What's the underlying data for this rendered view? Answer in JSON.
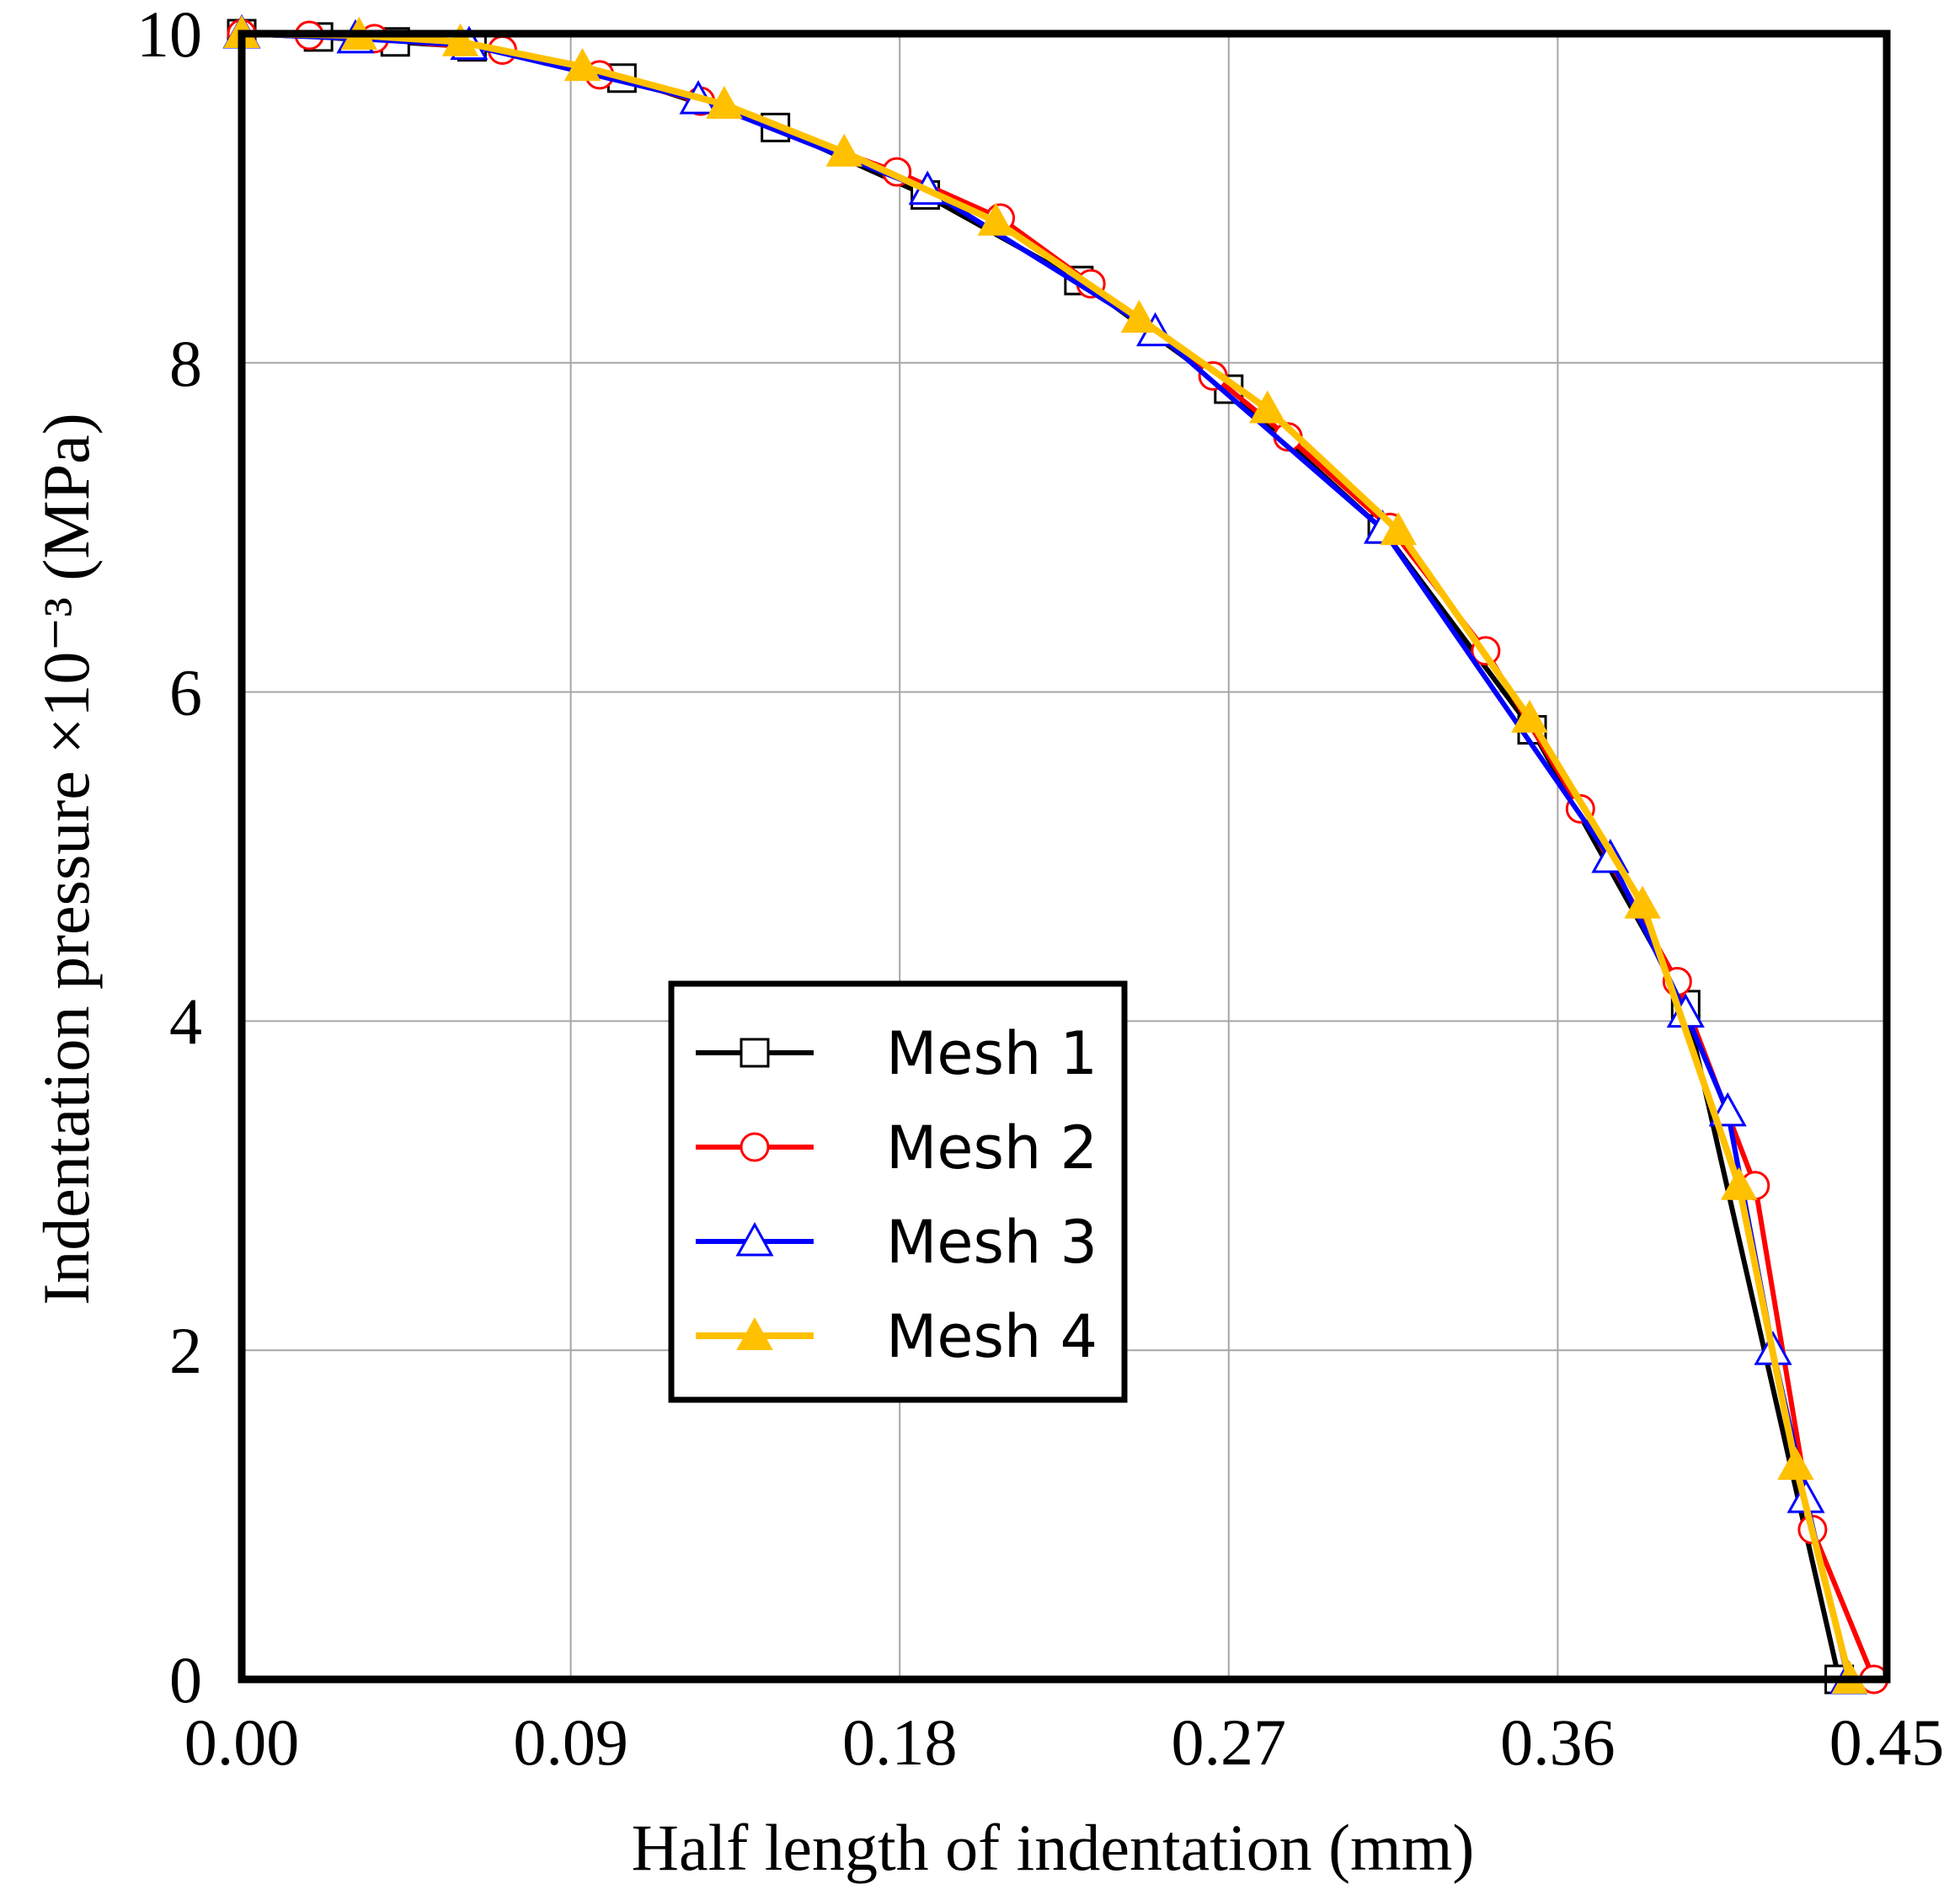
{
  "chart_data": {
    "type": "line",
    "xlabel": "Half length of indentation (mm)",
    "ylabel": "Indentation pressure ×10⁻³ (MPa)",
    "xlim": [
      0,
      0.45
    ],
    "ylim": [
      0,
      10
    ],
    "xticks": [
      "0.00",
      "0.09",
      "0.18",
      "0.27",
      "0.36",
      "0.45"
    ],
    "yticks": [
      "0",
      "2",
      "4",
      "6",
      "8",
      "10"
    ],
    "grid": true,
    "legend_position": "center-left",
    "series": [
      {
        "name": "Mesh 1",
        "color": "#000000",
        "marker": "square-open",
        "x": [
          0,
          0.021,
          0.042,
          0.063,
          0.104,
          0.146,
          0.187,
          0.229,
          0.27,
          0.312,
          0.353,
          0.395,
          0.437
        ],
        "y": [
          10,
          9.98,
          9.95,
          9.92,
          9.73,
          9.43,
          9.02,
          8.5,
          7.84,
          6.99,
          5.77,
          4.1,
          0.0
        ]
      },
      {
        "name": "Mesh 2",
        "color": "#ff0000",
        "marker": "circle-open",
        "x": [
          0,
          0.0185,
          0.0363,
          0.0713,
          0.0979,
          0.1255,
          0.1792,
          0.2075,
          0.2323,
          0.2657,
          0.2862,
          0.3141,
          0.3403,
          0.3662,
          0.3927,
          0.414,
          0.4297,
          0.4465
        ],
        "y": [
          10,
          9.99,
          9.97,
          9.9,
          9.75,
          9.59,
          9.16,
          8.88,
          8.48,
          7.92,
          7.55,
          7.0,
          6.25,
          5.29,
          4.24,
          3.0,
          0.91,
          0.0
        ]
      },
      {
        "name": "Mesh 3",
        "color": "#0000ff",
        "marker": "triangle-open",
        "x": [
          0,
          0.0311,
          0.0622,
          0.1249,
          0.1876,
          0.2499,
          0.3121,
          0.3744,
          0.395,
          0.4065,
          0.4189,
          0.4279,
          0.4395
        ],
        "y": [
          10,
          9.97,
          9.93,
          9.6,
          9.05,
          8.19,
          6.99,
          4.99,
          4.05,
          3.45,
          2.0,
          1.1,
          0.0
        ]
      },
      {
        "name": "Mesh 4",
        "color": "#ffc000",
        "marker": "triangle-filled",
        "x": [
          0,
          0.0321,
          0.0598,
          0.0932,
          0.132,
          0.1648,
          0.2063,
          0.2455,
          0.2806,
          0.3164,
          0.3523,
          0.3832,
          0.4096,
          0.4251,
          0.4399
        ],
        "y": [
          10,
          9.99,
          9.95,
          9.8,
          9.57,
          9.28,
          8.86,
          8.27,
          7.72,
          6.98,
          5.84,
          4.71,
          3.0,
          1.3,
          0.0
        ]
      }
    ]
  }
}
